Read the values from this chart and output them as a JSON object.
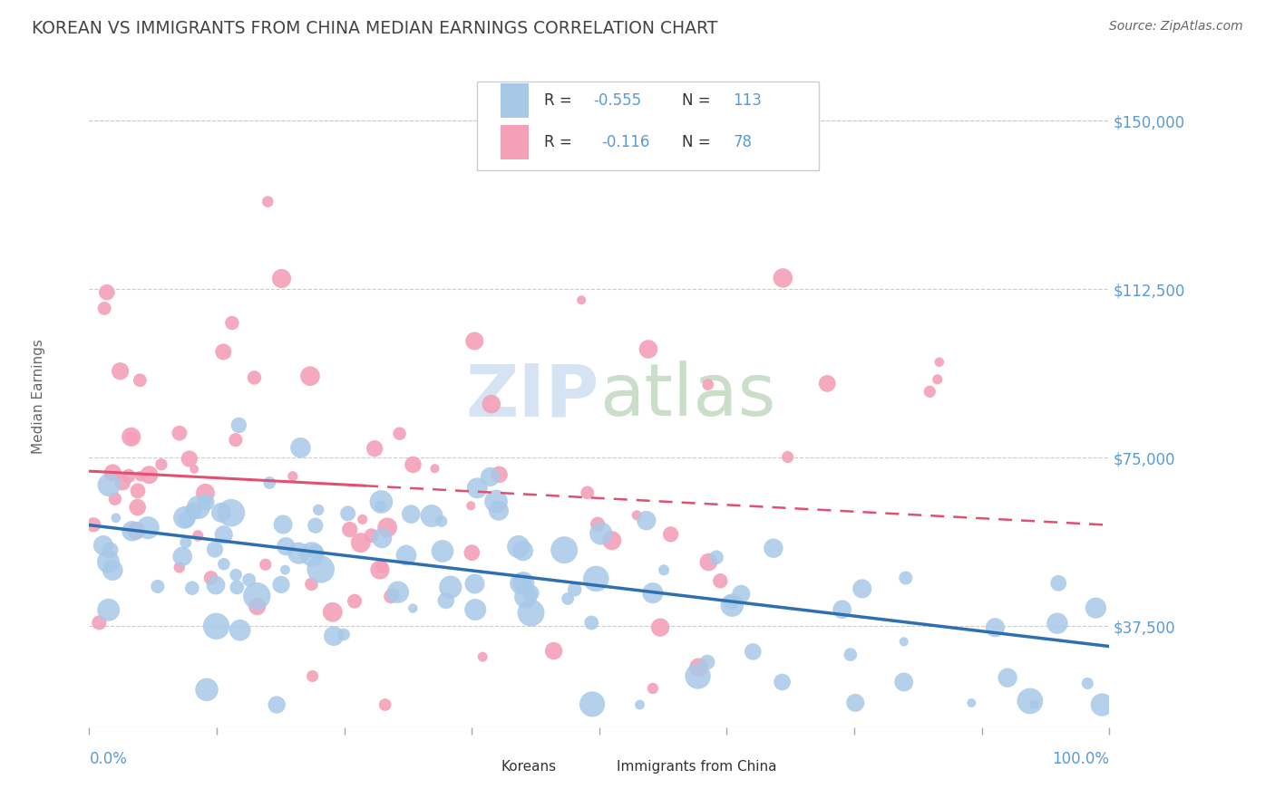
{
  "title": "KOREAN VS IMMIGRANTS FROM CHINA MEDIAN EARNINGS CORRELATION CHART",
  "source": "Source: ZipAtlas.com",
  "ylabel": "Median Earnings",
  "ytick_labels": [
    "$37,500",
    "$75,000",
    "$112,500",
    "$150,000"
  ],
  "ytick_values": [
    37500,
    75000,
    112500,
    150000
  ],
  "ymin": 15000,
  "ymax": 162500,
  "xmin": 0.0,
  "xmax": 1.0,
  "title_color": "#444444",
  "title_fontsize": 13.5,
  "source_fontsize": 10,
  "axis_color": "#5b9bd5",
  "blue_scatter_color": "#a8c8e8",
  "pink_scatter_color": "#f4a0b8",
  "blue_line_color": "#2e6faf",
  "pink_line_color": "#e05070",
  "grid_color": "#cccccc",
  "background_color": "#ffffff",
  "blue_R": -0.555,
  "blue_N": 113,
  "pink_R": -0.116,
  "pink_N": 78,
  "blue_intercept": 60000,
  "blue_slope": -27000,
  "pink_intercept": 72000,
  "pink_slope": -12000,
  "legend_blue_label1": "R = ",
  "legend_blue_R": "-0.555",
  "legend_blue_N_label": "N = ",
  "legend_blue_N": "113",
  "legend_pink_R": "-0.116",
  "legend_pink_N": "78",
  "watermark_zip": "ZIP",
  "watermark_atlas": "atlas",
  "bottom_label_korean": "Koreans",
  "bottom_label_china": "Immigrants from China"
}
